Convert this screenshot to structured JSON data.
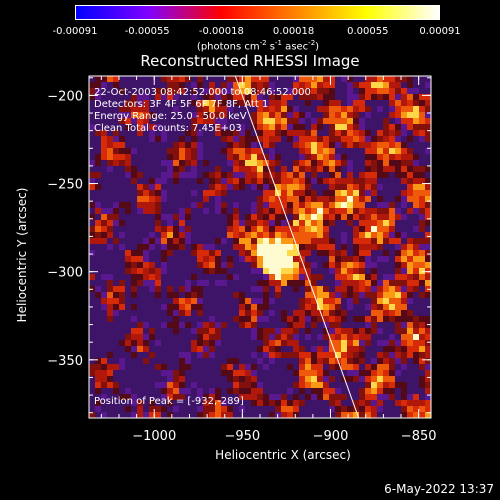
{
  "colorbar": {
    "ticks": [
      "-0.00091",
      "-0.00055",
      "-0.00018",
      "0.00018",
      "0.00055",
      "0.00091"
    ],
    "tick_values": [
      -0.00091,
      -0.00055,
      -0.00018,
      0.00018,
      0.00055,
      0.00091
    ],
    "unit": "(photons cm",
    "unit_exp1": "-2",
    "unit_mid": " s",
    "unit_exp2": "-1",
    "unit_mid2": " asec",
    "unit_exp3": "-2",
    "unit_end": ")",
    "colors": [
      "#0000ff",
      "#8000ff",
      "#ff0000",
      "#ff8000",
      "#ffff00",
      "#ffffff"
    ]
  },
  "title": "Reconstructed RHESSI Image",
  "annotations": {
    "time": "22-Oct-2003 08:42:52.000 to 08:46:52.000",
    "detectors": "Detectors: 3F 4F 5F 6F 7F 8F, Att 1",
    "energy": "Energy Range: 25.0 - 50.0 keV",
    "clean": "Clean    Total counts: 7.45E+03",
    "peak": "Position of Peak = [-932,-289]"
  },
  "footer": "6-May-2022 13:37",
  "chart_data": {
    "type": "heatmap",
    "title": "Reconstructed RHESSI Image",
    "xlabel": "Heliocentric X (arcsec)",
    "ylabel": "Heliocentric Y (arcsec)",
    "xlim": [
      -1037,
      -843
    ],
    "ylim": [
      -383,
      -189
    ],
    "xticks": [
      -1000,
      -950,
      -900,
      -850
    ],
    "xtick_labels": [
      "−1000",
      "−950",
      "−900",
      "−850"
    ],
    "yticks": [
      -200,
      -250,
      -300,
      -350
    ],
    "ytick_labels": [
      "−200",
      "−250",
      "−300",
      "−350"
    ],
    "peak_position": [
      -932,
      -289
    ],
    "limb_line": [
      [
        -954,
        -189
      ],
      [
        -884,
        -383
      ]
    ],
    "colorbar_range": [
      -0.00091,
      0.00091
    ]
  }
}
